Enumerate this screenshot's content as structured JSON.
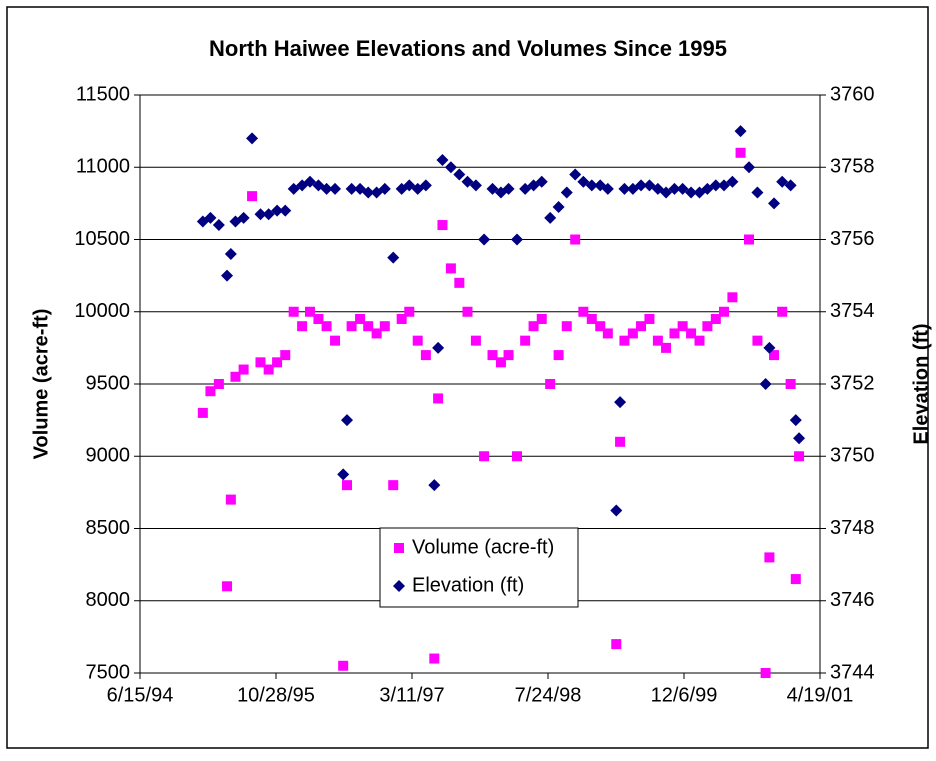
{
  "chart_data": {
    "type": "scatter",
    "title": "North Haiwee Elevations and Volumes Since 1995",
    "y_label": "Volume (acre-ft)",
    "y2_label": "Elevation (ft)",
    "legend": "center-bottom",
    "grid": true,
    "xlim": [
      "1994-06-15",
      "2001-04-19"
    ],
    "xticks": [
      {
        "value": "1994-06-15",
        "label": "6/15/94"
      },
      {
        "value": "1995-10-28",
        "label": "10/28/95"
      },
      {
        "value": "1997-03-11",
        "label": "3/11/97"
      },
      {
        "value": "1998-07-24",
        "label": "7/24/98"
      },
      {
        "value": "1999-12-06",
        "label": "12/6/99"
      },
      {
        "value": "2001-04-19",
        "label": "4/19/01"
      }
    ],
    "ylim": [
      7500,
      11500
    ],
    "yticks": [
      7500,
      8000,
      8500,
      9000,
      9500,
      10000,
      10500,
      11000,
      11500
    ],
    "y2lim": [
      3744,
      3760
    ],
    "y2ticks": [
      3744,
      3746,
      3748,
      3750,
      3752,
      3754,
      3756,
      3758,
      3760
    ],
    "x": [
      "1995-02-01",
      "1995-03-01",
      "1995-04-01",
      "1995-05-01",
      "1995-05-15",
      "1995-06-01",
      "1995-07-01",
      "1995-08-01",
      "1995-09-01",
      "1995-10-01",
      "1995-11-01",
      "1995-12-01",
      "1996-01-01",
      "1996-02-01",
      "1996-03-01",
      "1996-04-01",
      "1996-05-01",
      "1996-06-01",
      "1996-07-01",
      "1996-07-15",
      "1996-08-01",
      "1996-09-01",
      "1996-10-01",
      "1996-11-01",
      "1996-12-01",
      "1997-01-01",
      "1997-02-01",
      "1997-03-01",
      "1997-04-01",
      "1997-05-01",
      "1997-06-01",
      "1997-06-15",
      "1997-07-01",
      "1997-08-01",
      "1997-09-01",
      "1997-10-01",
      "1997-11-01",
      "1997-12-01",
      "1998-01-01",
      "1998-02-01",
      "1998-03-01",
      "1998-04-01",
      "1998-05-01",
      "1998-06-01",
      "1998-07-01",
      "1998-08-01",
      "1998-09-01",
      "1998-10-01",
      "1998-11-01",
      "1998-12-01",
      "1999-01-01",
      "1999-02-01",
      "1999-03-01",
      "1999-04-01",
      "1999-04-15",
      "1999-05-01",
      "1999-06-01",
      "1999-07-01",
      "1999-08-01",
      "1999-09-01",
      "1999-10-01",
      "1999-11-01",
      "1999-12-01",
      "2000-01-01",
      "2000-02-01",
      "2000-03-01",
      "2000-04-01",
      "2000-05-01",
      "2000-06-01",
      "2000-07-01",
      "2000-08-01",
      "2000-09-01",
      "2000-10-01",
      "2000-10-15",
      "2000-11-01",
      "2000-12-01",
      "2001-01-01",
      "2001-01-20",
      "2001-02-01"
    ],
    "series": [
      {
        "name": "Volume (acre-ft)",
        "color": "#ff00ff",
        "marker": "square",
        "values": [
          9300,
          9450,
          9500,
          8100,
          8700,
          9550,
          9600,
          10800,
          9650,
          9600,
          9650,
          9700,
          10000,
          9900,
          10000,
          9950,
          9900,
          9800,
          7550,
          8800,
          9900,
          9950,
          9900,
          9850,
          9900,
          8800,
          9950,
          10000,
          9800,
          9700,
          7600,
          9400,
          10600,
          10300,
          10200,
          10000,
          9800,
          9000,
          9700,
          9650,
          9700,
          9000,
          9800,
          9900,
          9950,
          9500,
          9700,
          9900,
          10500,
          10000,
          9950,
          9900,
          9850,
          7700,
          9100,
          9800,
          9850,
          9900,
          9950,
          9800,
          9750,
          9850,
          9900,
          9850,
          9800,
          9900,
          9950,
          10000,
          10100,
          11100,
          10500,
          9800,
          7500,
          8300,
          9700,
          10000,
          9500,
          8150,
          9000
        ]
      },
      {
        "name": "Elevation (ft)",
        "color": "#000080",
        "marker": "diamond",
        "axis": "y2",
        "values": [
          3756.5,
          3756.6,
          3756.4,
          3755.0,
          3755.6,
          3756.5,
          3756.6,
          3758.8,
          3756.7,
          3756.7,
          3756.8,
          3756.8,
          3757.4,
          3757.5,
          3757.6,
          3757.5,
          3757.4,
          3757.4,
          3749.5,
          3751.0,
          3757.4,
          3757.4,
          3757.3,
          3757.3,
          3757.4,
          3755.5,
          3757.4,
          3757.5,
          3757.4,
          3757.5,
          3749.2,
          3753.0,
          3758.2,
          3758.0,
          3757.8,
          3757.6,
          3757.5,
          3756.0,
          3757.4,
          3757.3,
          3757.4,
          3756.0,
          3757.4,
          3757.5,
          3757.6,
          3756.6,
          3756.9,
          3757.3,
          3757.8,
          3757.6,
          3757.5,
          3757.5,
          3757.4,
          3748.5,
          3751.5,
          3757.4,
          3757.4,
          3757.5,
          3757.5,
          3757.4,
          3757.3,
          3757.4,
          3757.4,
          3757.3,
          3757.3,
          3757.4,
          3757.5,
          3757.5,
          3757.6,
          3759.0,
          3758.0,
          3757.3,
          3752.0,
          3753.0,
          3757.0,
          3757.6,
          3757.5,
          3751.0,
          3750.5
        ]
      }
    ]
  }
}
